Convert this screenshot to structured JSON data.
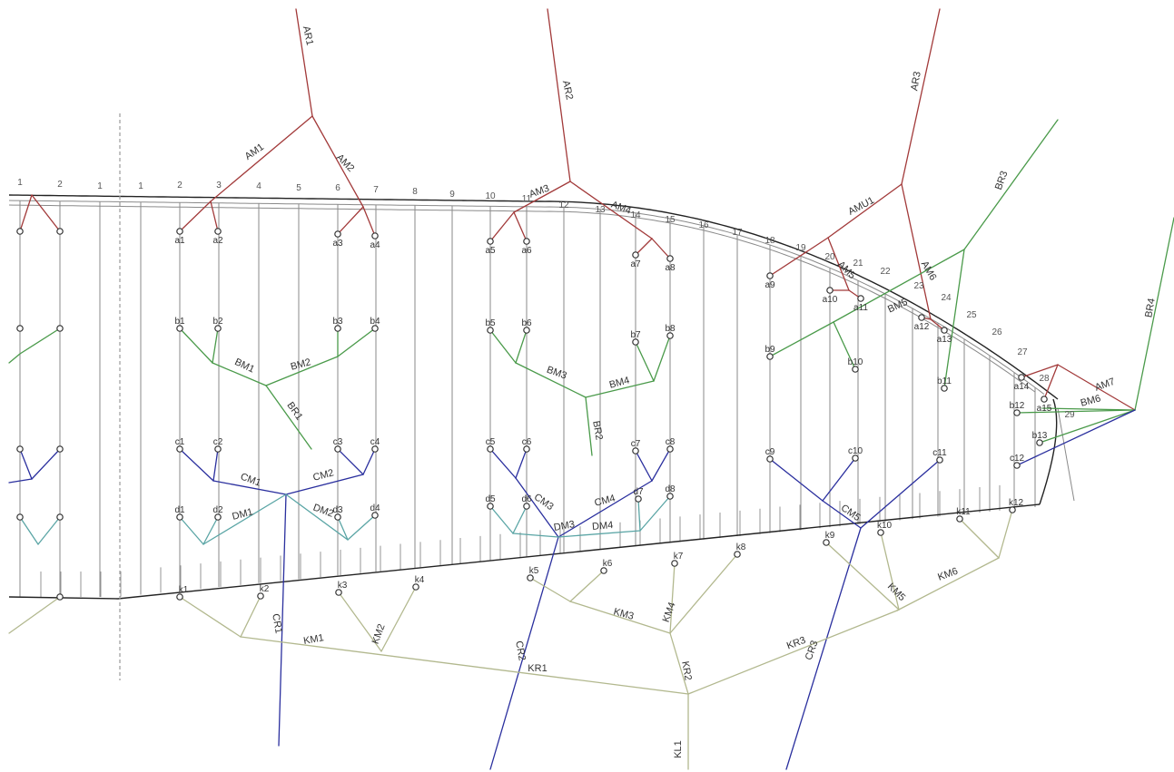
{
  "colors": {
    "A": "#a23a3a",
    "B": "#4a9a4a",
    "C": "#2a2f9e",
    "D": "#5aa5a5",
    "K": "#b2b88e",
    "rib": "#8a8a8a",
    "outline": "#222222",
    "centerline": "#999999"
  },
  "rib_numbers": [
    "1",
    "2",
    "1",
    "1",
    "2",
    "3",
    "4",
    "5",
    "6",
    "7",
    "8",
    "9",
    "10",
    "11",
    "12",
    "13",
    "14",
    "15",
    "16",
    "17",
    "18",
    "19",
    "20",
    "21",
    "22",
    "23",
    "24",
    "25",
    "26",
    "27",
    "28",
    "29"
  ],
  "point_labels": [
    "a1",
    "a2",
    "a3",
    "a4",
    "a5",
    "a6",
    "a7",
    "a8",
    "a9",
    "a10",
    "a11",
    "a12",
    "a13",
    "a14",
    "a15",
    "b1",
    "b2",
    "b3",
    "b4",
    "b5",
    "b6",
    "b7",
    "b8",
    "b9",
    "b10",
    "b11",
    "b12",
    "b13",
    "c1",
    "c2",
    "c3",
    "c4",
    "c5",
    "c6",
    "c7",
    "c8",
    "c9",
    "c10",
    "c11",
    "c12",
    "d1",
    "d2",
    "d3",
    "d4",
    "d5",
    "d6",
    "d7",
    "d8",
    "k1",
    "k2",
    "k3",
    "k4",
    "k5",
    "k6",
    "k7",
    "k8",
    "k9",
    "k10",
    "k11",
    "k12"
  ],
  "line_labels": [
    "AR1",
    "AR2",
    "AR3",
    "AM1",
    "AM2",
    "AM3",
    "AM4",
    "AMU1",
    "AM5",
    "AM6",
    "AM7",
    "BR1",
    "BR2",
    "BR3",
    "BR4",
    "BM1",
    "BM2",
    "BM3",
    "BM4",
    "BM5",
    "BM6",
    "CR1",
    "CR2",
    "CR3",
    "CM1",
    "CM2",
    "CM3",
    "CM4",
    "CM5",
    "DM1",
    "DM2",
    "DM3",
    "DM4",
    "KR1",
    "KR2",
    "KR3",
    "KM1",
    "KM2",
    "KM3",
    "KM4",
    "KM5",
    "KM6",
    "KL1"
  ]
}
